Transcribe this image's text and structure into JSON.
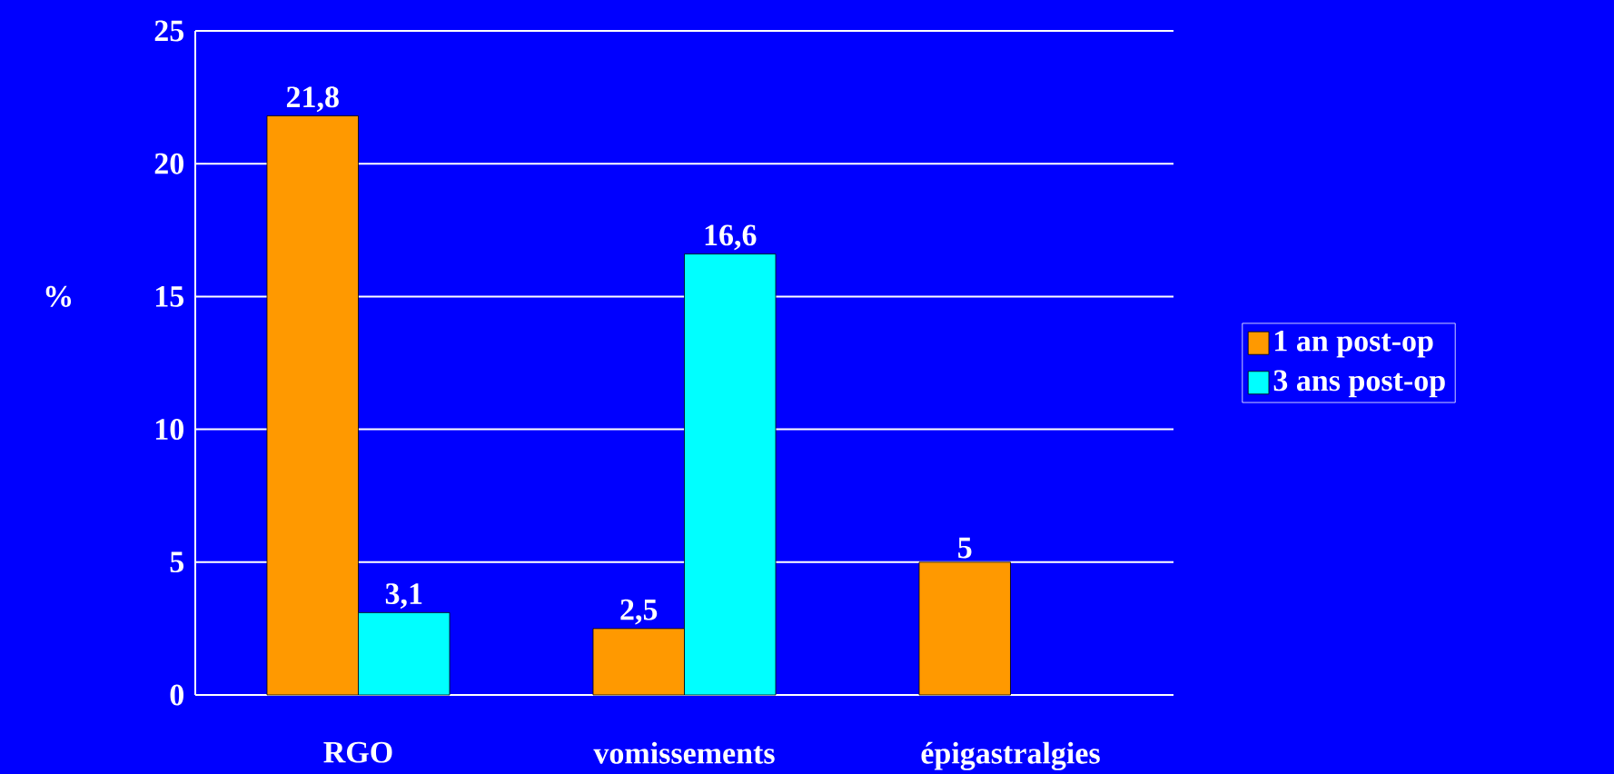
{
  "chart_data": {
    "type": "bar",
    "ylabel": "%",
    "categories": [
      "RGO",
      "vomissements",
      "épigastralgies"
    ],
    "series": [
      {
        "name": "1 an post-op",
        "color": "#ff9900",
        "values": [
          21.8,
          2.5,
          5
        ],
        "value_labels": [
          "21,8",
          "2,5",
          "5"
        ]
      },
      {
        "name": "3 ans post-op",
        "color": "#00ffff",
        "values": [
          3.1,
          16.6,
          null
        ],
        "value_labels": [
          "3,1",
          "16,6",
          null
        ]
      }
    ],
    "ylim": [
      0,
      25
    ],
    "yticks": [
      0,
      5,
      10,
      15,
      20,
      25
    ],
    "grid": "y",
    "legend": "right"
  }
}
